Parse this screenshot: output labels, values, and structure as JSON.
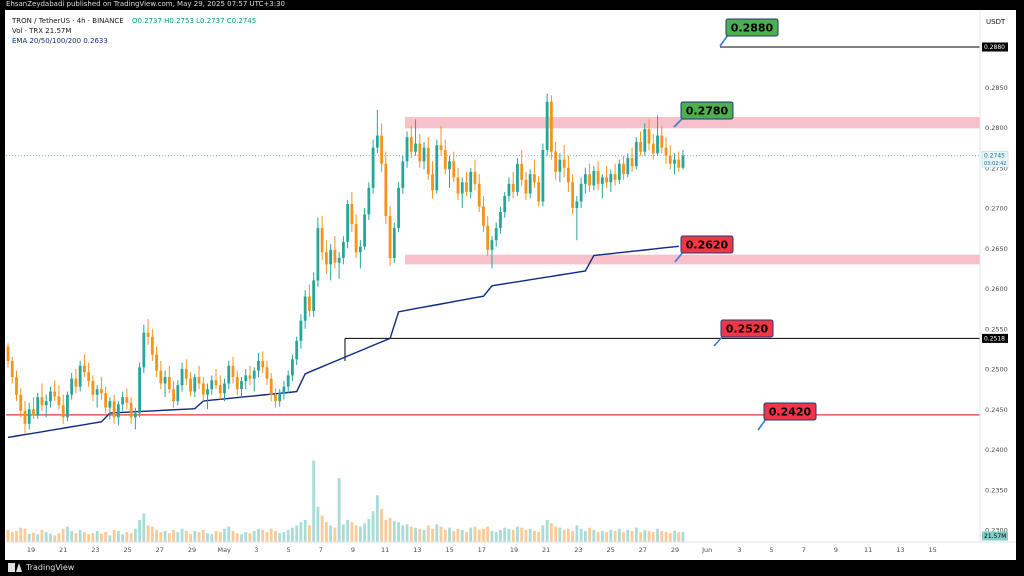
{
  "publisher": "EhsanZeydabadi published on TradingView.com, May 29, 2025 07:57 UTC+3:30",
  "legend": {
    "symbol": "TRON / TetherUS · 4h · BINANCE",
    "ohlc": "O0.2737 H0.2753 L0.2737 C0.2745",
    "volume": "Vol · TRX  21.57M",
    "ema": "EMA 20/50/100/200  0.2633"
  },
  "currency": "USDT",
  "footer": {
    "brand": "TradingView"
  },
  "colors": {
    "up": "#26a69a",
    "down": "#f7931a",
    "ema": "#0d2a82",
    "zone": "#f7b6bf",
    "green_label": "#4caf50",
    "red_label": "#f23645",
    "arrow": "#3a7bd5",
    "support_red": "#e53935",
    "current_price": "#5fb7c9"
  },
  "chart_data": {
    "type": "candlestick",
    "symbol": "TRON / TetherUS",
    "interval": "4h",
    "exchange": "BINANCE",
    "ylim": [
      0.2285,
      0.2915
    ],
    "y_ticks": [
      "0.2880",
      "0.2850",
      "0.2800",
      "0.2750",
      "0.2700",
      "0.2650",
      "0.2600",
      "0.2550",
      "0.2500",
      "0.2450",
      "0.2400",
      "0.2350",
      "0.2300"
    ],
    "x_ticks": [
      "19",
      "21",
      "23",
      "25",
      "27",
      "29",
      "May",
      "3",
      "5",
      "7",
      "9",
      "11",
      "13",
      "15",
      "17",
      "19",
      "21",
      "23",
      "25",
      "27",
      "29",
      "Jun",
      "3",
      "5",
      "7",
      "9",
      "11",
      "13",
      "15"
    ],
    "price_axis_badges": [
      {
        "label": "0.2880",
        "value": 0.288
      },
      {
        "label": "0.2745",
        "value": 0.2745,
        "sub": "03:02:42"
      },
      {
        "label": "0.2518",
        "value": 0.2518
      },
      {
        "label": "21.57M",
        "value": 0.2293
      }
    ],
    "last_price": 0.2745,
    "ema_value": 0.2633,
    "zones": [
      {
        "from": 0.2779,
        "to": 0.2793
      },
      {
        "from": 0.261,
        "to": 0.2622
      }
    ],
    "levels": [
      {
        "value": 0.288,
        "label": "0.2880",
        "color": "green"
      },
      {
        "value": 0.278,
        "label": "0.2780",
        "color": "green"
      },
      {
        "value": 0.262,
        "label": "0.2620",
        "color": "red"
      },
      {
        "value": 0.252,
        "label": "0.2520",
        "color": "red"
      },
      {
        "value": 0.242,
        "label": "0.2420",
        "color": "red"
      }
    ],
    "ohlc": [
      [
        0.2508,
        0.2512,
        0.2482,
        0.249
      ],
      [
        0.249,
        0.2495,
        0.2462,
        0.247
      ],
      [
        0.247,
        0.2478,
        0.244,
        0.2448
      ],
      [
        0.2448,
        0.2456,
        0.242,
        0.2428
      ],
      [
        0.2428,
        0.244,
        0.24,
        0.2412
      ],
      [
        0.2412,
        0.2438,
        0.2405,
        0.243
      ],
      [
        0.243,
        0.2445,
        0.2418,
        0.2422
      ],
      [
        0.2422,
        0.245,
        0.2418,
        0.2445
      ],
      [
        0.2445,
        0.2462,
        0.2428,
        0.2435
      ],
      [
        0.2435,
        0.2448,
        0.242,
        0.244
      ],
      [
        0.244,
        0.2458,
        0.2432,
        0.2452
      ],
      [
        0.2452,
        0.2466,
        0.244,
        0.2446
      ],
      [
        0.2446,
        0.246,
        0.243,
        0.2435
      ],
      [
        0.2435,
        0.2448,
        0.2412,
        0.242
      ],
      [
        0.242,
        0.2452,
        0.2415,
        0.2448
      ],
      [
        0.2448,
        0.2475,
        0.2442,
        0.2468
      ],
      [
        0.2468,
        0.248,
        0.245,
        0.2458
      ],
      [
        0.2458,
        0.249,
        0.2452,
        0.2484
      ],
      [
        0.2484,
        0.2498,
        0.247,
        0.2476
      ],
      [
        0.2476,
        0.2488,
        0.2458,
        0.2465
      ],
      [
        0.2465,
        0.2472,
        0.244,
        0.2448
      ],
      [
        0.2448,
        0.246,
        0.2432,
        0.2455
      ],
      [
        0.2455,
        0.247,
        0.2442,
        0.245
      ],
      [
        0.245,
        0.2458,
        0.2425,
        0.2432
      ],
      [
        0.2432,
        0.2445,
        0.2418,
        0.244
      ],
      [
        0.244,
        0.2448,
        0.2412,
        0.242
      ],
      [
        0.242,
        0.244,
        0.241,
        0.2436
      ],
      [
        0.2436,
        0.2452,
        0.2428,
        0.2445
      ],
      [
        0.2445,
        0.2456,
        0.243,
        0.2438
      ],
      [
        0.2438,
        0.2445,
        0.2412,
        0.242
      ],
      [
        0.242,
        0.2432,
        0.2405,
        0.2425
      ],
      [
        0.2425,
        0.2488,
        0.242,
        0.2482
      ],
      [
        0.2482,
        0.2535,
        0.2475,
        0.2525
      ],
      [
        0.2525,
        0.2542,
        0.251,
        0.252
      ],
      [
        0.252,
        0.253,
        0.249,
        0.2498
      ],
      [
        0.2498,
        0.2508,
        0.247,
        0.2478
      ],
      [
        0.2478,
        0.249,
        0.2455,
        0.2462
      ],
      [
        0.2462,
        0.2478,
        0.2445,
        0.247
      ],
      [
        0.247,
        0.2484,
        0.245,
        0.2455
      ],
      [
        0.2455,
        0.2465,
        0.2432,
        0.244
      ],
      [
        0.244,
        0.2466,
        0.2435,
        0.246
      ],
      [
        0.246,
        0.2488,
        0.2452,
        0.248
      ],
      [
        0.248,
        0.2492,
        0.246,
        0.2468
      ],
      [
        0.2468,
        0.2476,
        0.2446,
        0.2452
      ],
      [
        0.2452,
        0.2474,
        0.2445,
        0.247
      ],
      [
        0.247,
        0.2484,
        0.2455,
        0.2462
      ],
      [
        0.2462,
        0.247,
        0.244,
        0.2448
      ],
      [
        0.2448,
        0.2462,
        0.243,
        0.2455
      ],
      [
        0.2455,
        0.2472,
        0.2448,
        0.2466
      ],
      [
        0.2466,
        0.248,
        0.2455,
        0.246
      ],
      [
        0.246,
        0.2472,
        0.2442,
        0.245
      ],
      [
        0.245,
        0.2468,
        0.244,
        0.2462
      ],
      [
        0.2462,
        0.249,
        0.2455,
        0.2484
      ],
      [
        0.2484,
        0.2495,
        0.2462,
        0.247
      ],
      [
        0.247,
        0.2478,
        0.2448,
        0.2455
      ],
      [
        0.2455,
        0.247,
        0.2445,
        0.2465
      ],
      [
        0.2465,
        0.248,
        0.2455,
        0.2472
      ],
      [
        0.2472,
        0.2484,
        0.246,
        0.2468
      ],
      [
        0.2468,
        0.2482,
        0.2452,
        0.2478
      ],
      [
        0.2478,
        0.25,
        0.247,
        0.249
      ],
      [
        0.249,
        0.2502,
        0.2475,
        0.2482
      ],
      [
        0.2482,
        0.249,
        0.246,
        0.2468
      ],
      [
        0.2468,
        0.2475,
        0.244,
        0.2448
      ],
      [
        0.2448,
        0.2456,
        0.2432,
        0.244
      ],
      [
        0.244,
        0.2455,
        0.2433,
        0.245
      ],
      [
        0.245,
        0.2465,
        0.2442,
        0.2458
      ],
      [
        0.2458,
        0.2478,
        0.245,
        0.2472
      ],
      [
        0.2472,
        0.2498,
        0.2465,
        0.2492
      ],
      [
        0.2492,
        0.252,
        0.2485,
        0.2515
      ],
      [
        0.2515,
        0.2548,
        0.2505,
        0.254
      ],
      [
        0.254,
        0.2578,
        0.253,
        0.257
      ],
      [
        0.257,
        0.2585,
        0.2545,
        0.2552
      ],
      [
        0.2552,
        0.26,
        0.2545,
        0.259
      ],
      [
        0.259,
        0.2668,
        0.2582,
        0.2655
      ],
      [
        0.2655,
        0.267,
        0.2615,
        0.2625
      ],
      [
        0.2625,
        0.264,
        0.2598,
        0.261
      ],
      [
        0.261,
        0.2635,
        0.259,
        0.2628
      ],
      [
        0.2628,
        0.2645,
        0.2605,
        0.2612
      ],
      [
        0.2612,
        0.2625,
        0.2592,
        0.2618
      ],
      [
        0.2618,
        0.2645,
        0.261,
        0.2638
      ],
      [
        0.2638,
        0.269,
        0.263,
        0.2685
      ],
      [
        0.2685,
        0.27,
        0.265,
        0.266
      ],
      [
        0.266,
        0.2672,
        0.2618,
        0.2625
      ],
      [
        0.2625,
        0.264,
        0.2605,
        0.2632
      ],
      [
        0.2632,
        0.268,
        0.2628,
        0.2672
      ],
      [
        0.2672,
        0.2712,
        0.2665,
        0.2705
      ],
      [
        0.2705,
        0.2765,
        0.2698,
        0.2755
      ],
      [
        0.2755,
        0.2802,
        0.2748,
        0.277
      ],
      [
        0.277,
        0.2785,
        0.2725,
        0.2735
      ],
      [
        0.2735,
        0.275,
        0.266,
        0.267
      ],
      [
        0.267,
        0.2682,
        0.2608,
        0.2618
      ],
      [
        0.2618,
        0.2662,
        0.2612,
        0.2655
      ],
      [
        0.2655,
        0.2712,
        0.265,
        0.2705
      ],
      [
        0.2705,
        0.2745,
        0.2698,
        0.2738
      ],
      [
        0.2738,
        0.2775,
        0.273,
        0.2768
      ],
      [
        0.2768,
        0.2782,
        0.2742,
        0.275
      ],
      [
        0.275,
        0.279,
        0.2745,
        0.276
      ],
      [
        0.276,
        0.2772,
        0.273,
        0.2738
      ],
      [
        0.2738,
        0.2762,
        0.2728,
        0.2755
      ],
      [
        0.2755,
        0.2768,
        0.2715,
        0.2722
      ],
      [
        0.2722,
        0.2738,
        0.2692,
        0.2702
      ],
      [
        0.2702,
        0.2765,
        0.2698,
        0.2758
      ],
      [
        0.2758,
        0.2782,
        0.2745,
        0.2752
      ],
      [
        0.2752,
        0.2765,
        0.2722,
        0.2728
      ],
      [
        0.2728,
        0.2745,
        0.2705,
        0.2738
      ],
      [
        0.2738,
        0.275,
        0.2712,
        0.2718
      ],
      [
        0.2718,
        0.273,
        0.269,
        0.2698
      ],
      [
        0.2698,
        0.2718,
        0.268,
        0.2712
      ],
      [
        0.2712,
        0.2725,
        0.2695,
        0.27
      ],
      [
        0.27,
        0.273,
        0.2692,
        0.2725
      ],
      [
        0.2725,
        0.274,
        0.2702,
        0.271
      ],
      [
        0.271,
        0.2722,
        0.2675,
        0.2682
      ],
      [
        0.2682,
        0.2695,
        0.265,
        0.2658
      ],
      [
        0.2658,
        0.267,
        0.262,
        0.2628
      ],
      [
        0.2628,
        0.2645,
        0.2605,
        0.264
      ],
      [
        0.264,
        0.2662,
        0.2632,
        0.2655
      ],
      [
        0.2655,
        0.2682,
        0.2648,
        0.2675
      ],
      [
        0.2675,
        0.27,
        0.2668,
        0.2695
      ],
      [
        0.2695,
        0.2718,
        0.2688,
        0.271
      ],
      [
        0.271,
        0.2725,
        0.2692,
        0.27
      ],
      [
        0.27,
        0.2742,
        0.2695,
        0.2735
      ],
      [
        0.2735,
        0.2752,
        0.2708,
        0.2715
      ],
      [
        0.2715,
        0.2725,
        0.269,
        0.2698
      ],
      [
        0.2698,
        0.2728,
        0.2692,
        0.2722
      ],
      [
        0.2722,
        0.274,
        0.2705,
        0.2712
      ],
      [
        0.2712,
        0.272,
        0.2682,
        0.2688
      ],
      [
        0.2688,
        0.276,
        0.2682,
        0.2752
      ],
      [
        0.2752,
        0.2822,
        0.2745,
        0.2812
      ],
      [
        0.2812,
        0.282,
        0.274,
        0.275
      ],
      [
        0.275,
        0.2762,
        0.2715,
        0.2725
      ],
      [
        0.2725,
        0.2748,
        0.2712,
        0.274
      ],
      [
        0.274,
        0.2758,
        0.2718,
        0.273
      ],
      [
        0.273,
        0.2745,
        0.27,
        0.2712
      ],
      [
        0.2712,
        0.2722,
        0.2672,
        0.268
      ],
      [
        0.268,
        0.2695,
        0.264,
        0.2688
      ],
      [
        0.2688,
        0.2718,
        0.268,
        0.271
      ],
      [
        0.271,
        0.273,
        0.2698,
        0.2722
      ],
      [
        0.2722,
        0.2735,
        0.27,
        0.2708
      ],
      [
        0.2708,
        0.2732,
        0.2702,
        0.2726
      ],
      [
        0.2726,
        0.2738,
        0.2702,
        0.271
      ],
      [
        0.271,
        0.2722,
        0.2692,
        0.2718
      ],
      [
        0.2718,
        0.2732,
        0.2705,
        0.2712
      ],
      [
        0.2712,
        0.2728,
        0.27,
        0.2722
      ],
      [
        0.2722,
        0.2735,
        0.2708,
        0.2715
      ],
      [
        0.2715,
        0.274,
        0.271,
        0.2735
      ],
      [
        0.2735,
        0.2745,
        0.2715,
        0.2722
      ],
      [
        0.2722,
        0.2748,
        0.2718,
        0.2742
      ],
      [
        0.2742,
        0.2755,
        0.2725,
        0.2732
      ],
      [
        0.2732,
        0.2768,
        0.2728,
        0.2762
      ],
      [
        0.2762,
        0.2775,
        0.2745,
        0.275
      ],
      [
        0.275,
        0.2785,
        0.2745,
        0.2778
      ],
      [
        0.2778,
        0.279,
        0.2752,
        0.276
      ],
      [
        0.276,
        0.2772,
        0.274,
        0.2748
      ],
      [
        0.2748,
        0.2795,
        0.2745,
        0.277
      ],
      [
        0.277,
        0.2782,
        0.2748,
        0.2755
      ],
      [
        0.2755,
        0.2768,
        0.2735,
        0.2745
      ],
      [
        0.2745,
        0.2758,
        0.2728,
        0.2735
      ],
      [
        0.2735,
        0.2748,
        0.2722,
        0.274
      ],
      [
        0.274,
        0.275,
        0.2725,
        0.273
      ],
      [
        0.273,
        0.2752,
        0.2728,
        0.2745
      ]
    ],
    "volume": [
      22,
      18,
      20,
      26,
      24,
      15,
      17,
      14,
      22,
      18,
      15,
      12,
      16,
      24,
      28,
      20,
      16,
      22,
      18,
      14,
      16,
      20,
      15,
      18,
      12,
      22,
      20,
      14,
      18,
      16,
      24,
      40,
      52,
      30,
      28,
      22,
      18,
      20,
      16,
      22,
      18,
      24,
      20,
      14,
      20,
      18,
      22,
      16,
      14,
      20,
      18,
      24,
      28,
      20,
      16,
      14,
      18,
      16,
      20,
      24,
      22,
      18,
      24,
      20,
      16,
      18,
      22,
      26,
      30,
      36,
      40,
      30,
      42,
      64,
      48,
      36,
      30,
      26,
      28,
      32,
      40,
      36,
      30,
      28,
      34,
      42,
      56,
      85,
      60,
      40,
      44,
      38,
      36,
      30,
      32,
      28,
      26,
      24,
      22,
      30,
      24,
      32,
      28,
      22,
      26,
      20,
      24,
      22,
      18,
      26,
      28,
      22,
      24,
      28,
      20,
      18,
      22,
      26,
      24,
      22,
      28,
      26,
      22,
      24,
      20,
      18,
      30,
      40,
      34,
      28,
      26,
      22,
      24,
      20,
      30,
      24,
      20,
      26,
      22,
      18,
      20,
      18,
      22,
      20,
      24,
      18,
      22,
      20,
      26,
      18,
      22,
      20,
      18,
      24,
      20,
      18,
      16,
      20,
      18,
      18
    ],
    "volume_spikes": [
      [
        72,
        130
      ],
      [
        78,
        98
      ]
    ],
    "ema200": [
      [
        0.2395,
        0.2415
      ],
      [
        0.2425,
        0.2431
      ],
      [
        0.244,
        0.2452
      ],
      [
        0.247,
        0.252
      ],
      [
        0.255,
        0.2572
      ],
      [
        0.2583,
        0.2602
      ],
      [
        0.262,
        0.2633
      ]
    ]
  }
}
